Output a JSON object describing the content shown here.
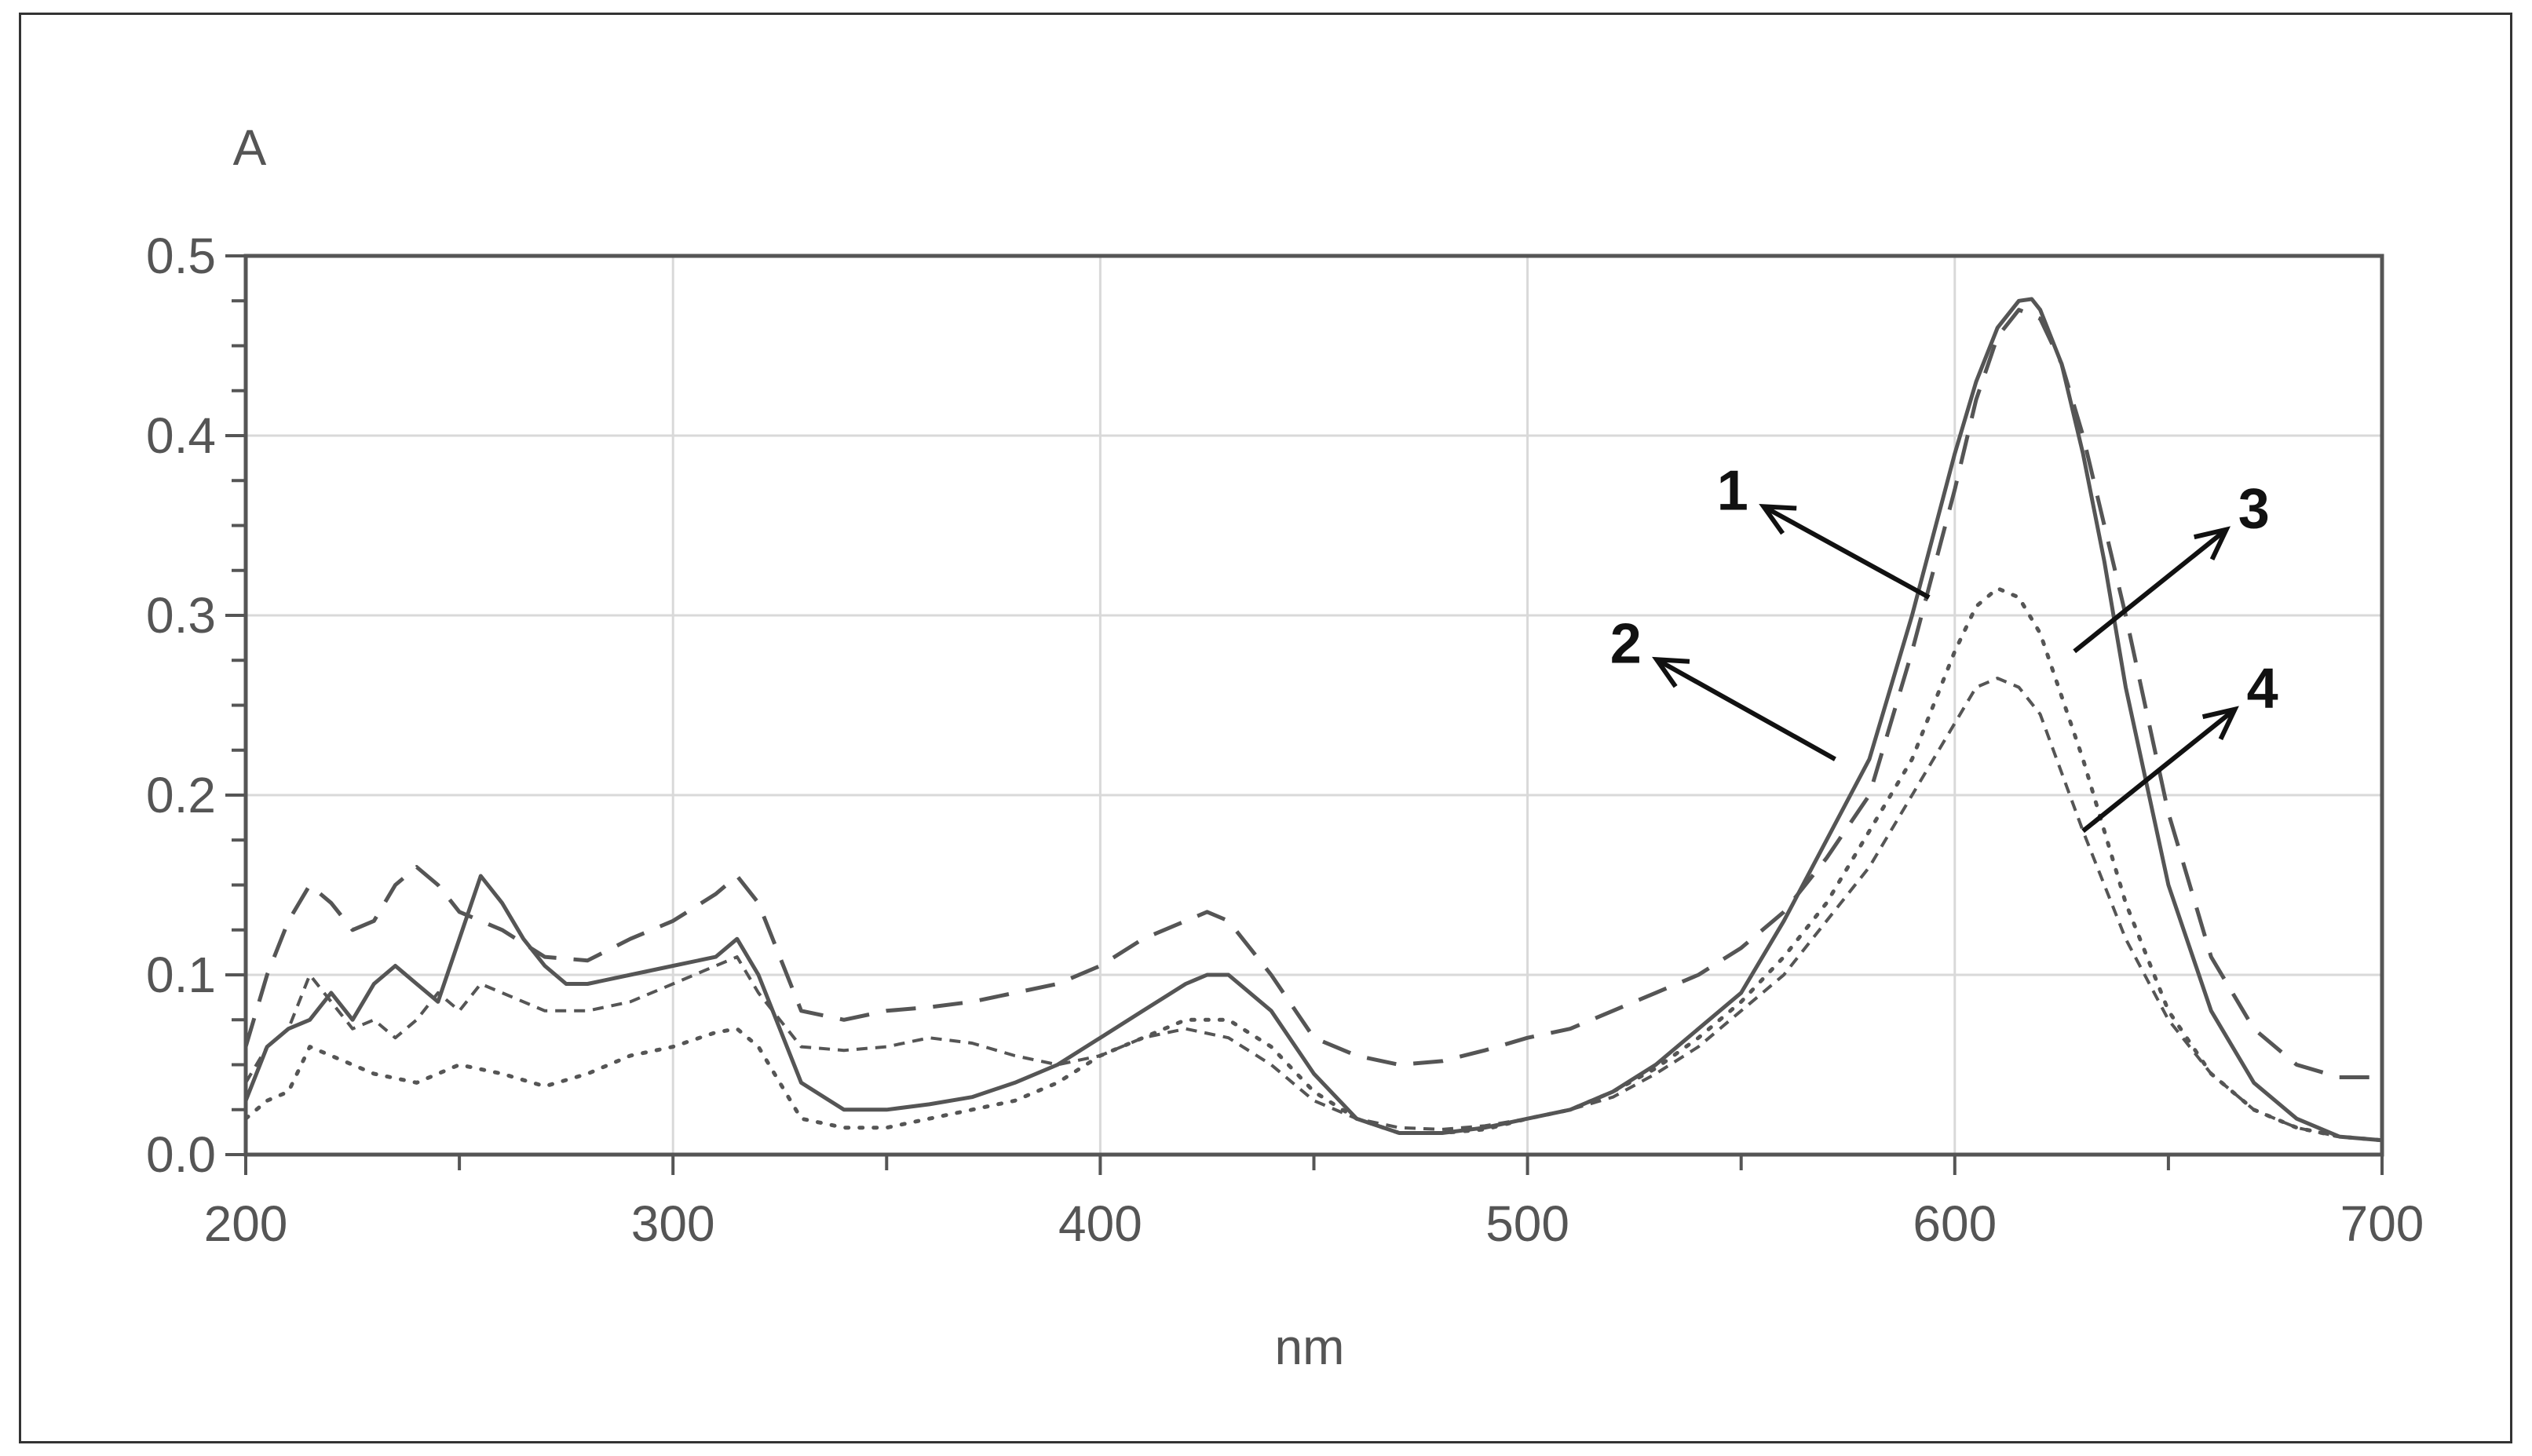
{
  "chart_data": {
    "type": "line",
    "title": "",
    "xlabel": "nm",
    "ylabel": "A",
    "xlim": [
      200,
      700
    ],
    "ylim": [
      0.0,
      0.5
    ],
    "grid": true,
    "x_ticks": [
      {
        "value": 200,
        "label": "200"
      },
      {
        "value": 300,
        "label": "300"
      },
      {
        "value": 400,
        "label": "400"
      },
      {
        "value": 500,
        "label": "500"
      },
      {
        "value": 600,
        "label": "600"
      },
      {
        "value": 700,
        "label": "700"
      }
    ],
    "y_ticks": [
      {
        "value": 0.0,
        "label": "0.0"
      },
      {
        "value": 0.1,
        "label": "0.1"
      },
      {
        "value": 0.2,
        "label": "0.2"
      },
      {
        "value": 0.3,
        "label": "0.3"
      },
      {
        "value": 0.4,
        "label": "0.4"
      },
      {
        "value": 0.5,
        "label": "0.5"
      }
    ],
    "series": [
      {
        "name": "1",
        "style": "solid",
        "x": [
          200,
          205,
          210,
          215,
          220,
          225,
          230,
          235,
          240,
          245,
          250,
          255,
          260,
          265,
          270,
          275,
          280,
          290,
          300,
          310,
          315,
          320,
          330,
          340,
          350,
          360,
          370,
          380,
          390,
          400,
          410,
          420,
          425,
          430,
          440,
          450,
          460,
          470,
          480,
          490,
          500,
          510,
          520,
          530,
          540,
          550,
          560,
          570,
          580,
          590,
          600,
          605,
          610,
          615,
          618,
          620,
          625,
          630,
          635,
          640,
          650,
          660,
          670,
          680,
          690,
          700
        ],
        "y": [
          0.03,
          0.06,
          0.07,
          0.075,
          0.09,
          0.075,
          0.095,
          0.105,
          0.095,
          0.085,
          0.12,
          0.155,
          0.14,
          0.12,
          0.105,
          0.095,
          0.095,
          0.1,
          0.105,
          0.11,
          0.12,
          0.1,
          0.04,
          0.025,
          0.025,
          0.028,
          0.032,
          0.04,
          0.05,
          0.065,
          0.08,
          0.095,
          0.1,
          0.1,
          0.08,
          0.045,
          0.02,
          0.012,
          0.012,
          0.015,
          0.02,
          0.025,
          0.035,
          0.05,
          0.07,
          0.09,
          0.13,
          0.175,
          0.22,
          0.3,
          0.39,
          0.43,
          0.46,
          0.475,
          0.476,
          0.47,
          0.44,
          0.39,
          0.33,
          0.26,
          0.15,
          0.08,
          0.04,
          0.02,
          0.01,
          0.008
        ]
      },
      {
        "name": "2",
        "style": "longdash",
        "x": [
          200,
          205,
          210,
          215,
          220,
          225,
          230,
          235,
          240,
          245,
          250,
          255,
          260,
          270,
          280,
          290,
          300,
          310,
          315,
          320,
          330,
          340,
          350,
          360,
          370,
          380,
          390,
          400,
          410,
          420,
          425,
          430,
          440,
          450,
          460,
          470,
          480,
          490,
          500,
          510,
          520,
          530,
          540,
          550,
          560,
          570,
          580,
          590,
          600,
          605,
          610,
          615,
          620,
          625,
          630,
          640,
          650,
          660,
          670,
          680,
          690,
          700
        ],
        "y": [
          0.06,
          0.1,
          0.13,
          0.15,
          0.14,
          0.125,
          0.13,
          0.15,
          0.16,
          0.15,
          0.135,
          0.13,
          0.125,
          0.11,
          0.108,
          0.12,
          0.13,
          0.145,
          0.155,
          0.14,
          0.08,
          0.075,
          0.08,
          0.082,
          0.085,
          0.09,
          0.095,
          0.105,
          0.12,
          0.13,
          0.135,
          0.13,
          0.1,
          0.065,
          0.055,
          0.05,
          0.052,
          0.058,
          0.065,
          0.07,
          0.08,
          0.09,
          0.1,
          0.115,
          0.135,
          0.165,
          0.2,
          0.28,
          0.37,
          0.42,
          0.455,
          0.47,
          0.465,
          0.44,
          0.4,
          0.3,
          0.19,
          0.11,
          0.07,
          0.05,
          0.043,
          0.043
        ]
      },
      {
        "name": "3",
        "style": "dotted",
        "x": [
          200,
          205,
          210,
          215,
          220,
          230,
          240,
          250,
          260,
          270,
          280,
          290,
          300,
          310,
          315,
          320,
          330,
          340,
          350,
          360,
          370,
          380,
          390,
          400,
          410,
          420,
          430,
          440,
          450,
          460,
          470,
          480,
          490,
          500,
          510,
          520,
          530,
          540,
          550,
          560,
          570,
          580,
          590,
          600,
          605,
          610,
          615,
          620,
          630,
          640,
          650,
          660,
          670,
          680,
          690,
          700
        ],
        "y": [
          0.02,
          0.03,
          0.035,
          0.06,
          0.055,
          0.045,
          0.04,
          0.05,
          0.045,
          0.038,
          0.045,
          0.055,
          0.06,
          0.068,
          0.07,
          0.06,
          0.02,
          0.015,
          0.015,
          0.02,
          0.025,
          0.03,
          0.04,
          0.055,
          0.065,
          0.075,
          0.075,
          0.06,
          0.035,
          0.02,
          0.012,
          0.012,
          0.014,
          0.02,
          0.025,
          0.035,
          0.048,
          0.065,
          0.085,
          0.11,
          0.14,
          0.18,
          0.22,
          0.28,
          0.305,
          0.315,
          0.31,
          0.29,
          0.22,
          0.14,
          0.08,
          0.045,
          0.025,
          0.015,
          0.01,
          0.008
        ]
      },
      {
        "name": "4",
        "style": "shortdash",
        "x": [
          200,
          205,
          210,
          215,
          220,
          225,
          230,
          235,
          240,
          245,
          250,
          255,
          260,
          270,
          280,
          290,
          300,
          310,
          315,
          320,
          330,
          340,
          350,
          360,
          370,
          380,
          390,
          400,
          410,
          420,
          430,
          440,
          450,
          460,
          470,
          480,
          490,
          500,
          510,
          520,
          530,
          540,
          550,
          560,
          570,
          580,
          590,
          600,
          605,
          610,
          615,
          620,
          630,
          640,
          650,
          660,
          670,
          680,
          690,
          700
        ],
        "y": [
          0.04,
          0.06,
          0.07,
          0.1,
          0.085,
          0.07,
          0.075,
          0.065,
          0.075,
          0.09,
          0.08,
          0.095,
          0.09,
          0.08,
          0.08,
          0.085,
          0.095,
          0.105,
          0.11,
          0.09,
          0.06,
          0.058,
          0.06,
          0.065,
          0.062,
          0.055,
          0.05,
          0.055,
          0.065,
          0.07,
          0.065,
          0.05,
          0.03,
          0.02,
          0.015,
          0.014,
          0.016,
          0.02,
          0.025,
          0.032,
          0.045,
          0.06,
          0.08,
          0.1,
          0.13,
          0.16,
          0.2,
          0.24,
          0.26,
          0.265,
          0.26,
          0.245,
          0.18,
          0.12,
          0.075,
          0.045,
          0.025,
          0.015,
          0.01,
          0.008
        ]
      }
    ],
    "annotations": [
      {
        "label": "1",
        "series": "1",
        "arrow_from": [
          594,
          0.31
        ],
        "label_at": [
          548,
          0.37
        ]
      },
      {
        "label": "2",
        "series": "2",
        "arrow_from": [
          572,
          0.22
        ],
        "label_at": [
          523,
          0.285
        ]
      },
      {
        "label": "3",
        "series": "3",
        "arrow_from": [
          628,
          0.28
        ],
        "label_at": [
          670,
          0.36
        ]
      },
      {
        "label": "4",
        "series": "4",
        "arrow_from": [
          630,
          0.18
        ],
        "label_at": [
          672,
          0.26
        ]
      }
    ]
  },
  "colors": {
    "frame": "#333333",
    "axes": "#555555",
    "grid": "#d9d9d9",
    "series": "#555555",
    "annotation": "#111111"
  }
}
